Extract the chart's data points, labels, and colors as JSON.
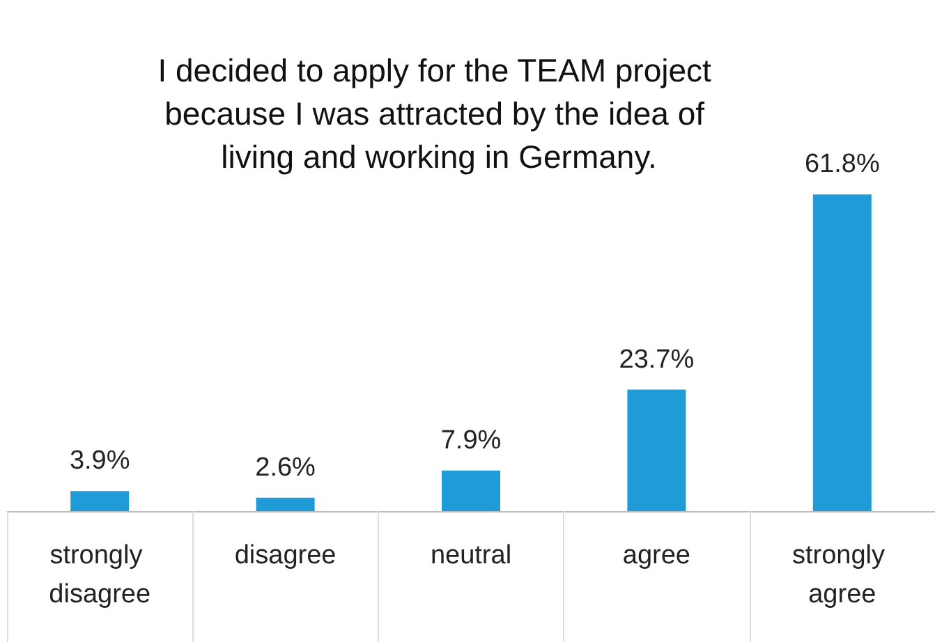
{
  "chart_data": {
    "type": "bar",
    "title": "I decided to apply for the TEAM project because I was attracted by the idea of living and working in Germany.",
    "categories": [
      "strongly disagree",
      "disagree",
      "neutral",
      "agree",
      "strongly agree"
    ],
    "values": [
      3.9,
      2.6,
      7.9,
      23.7,
      61.8
    ],
    "value_labels": [
      "3.9%",
      "2.6%",
      "7.9%",
      "23.7%",
      "61.8%"
    ],
    "color": "#1f9bd7"
  }
}
